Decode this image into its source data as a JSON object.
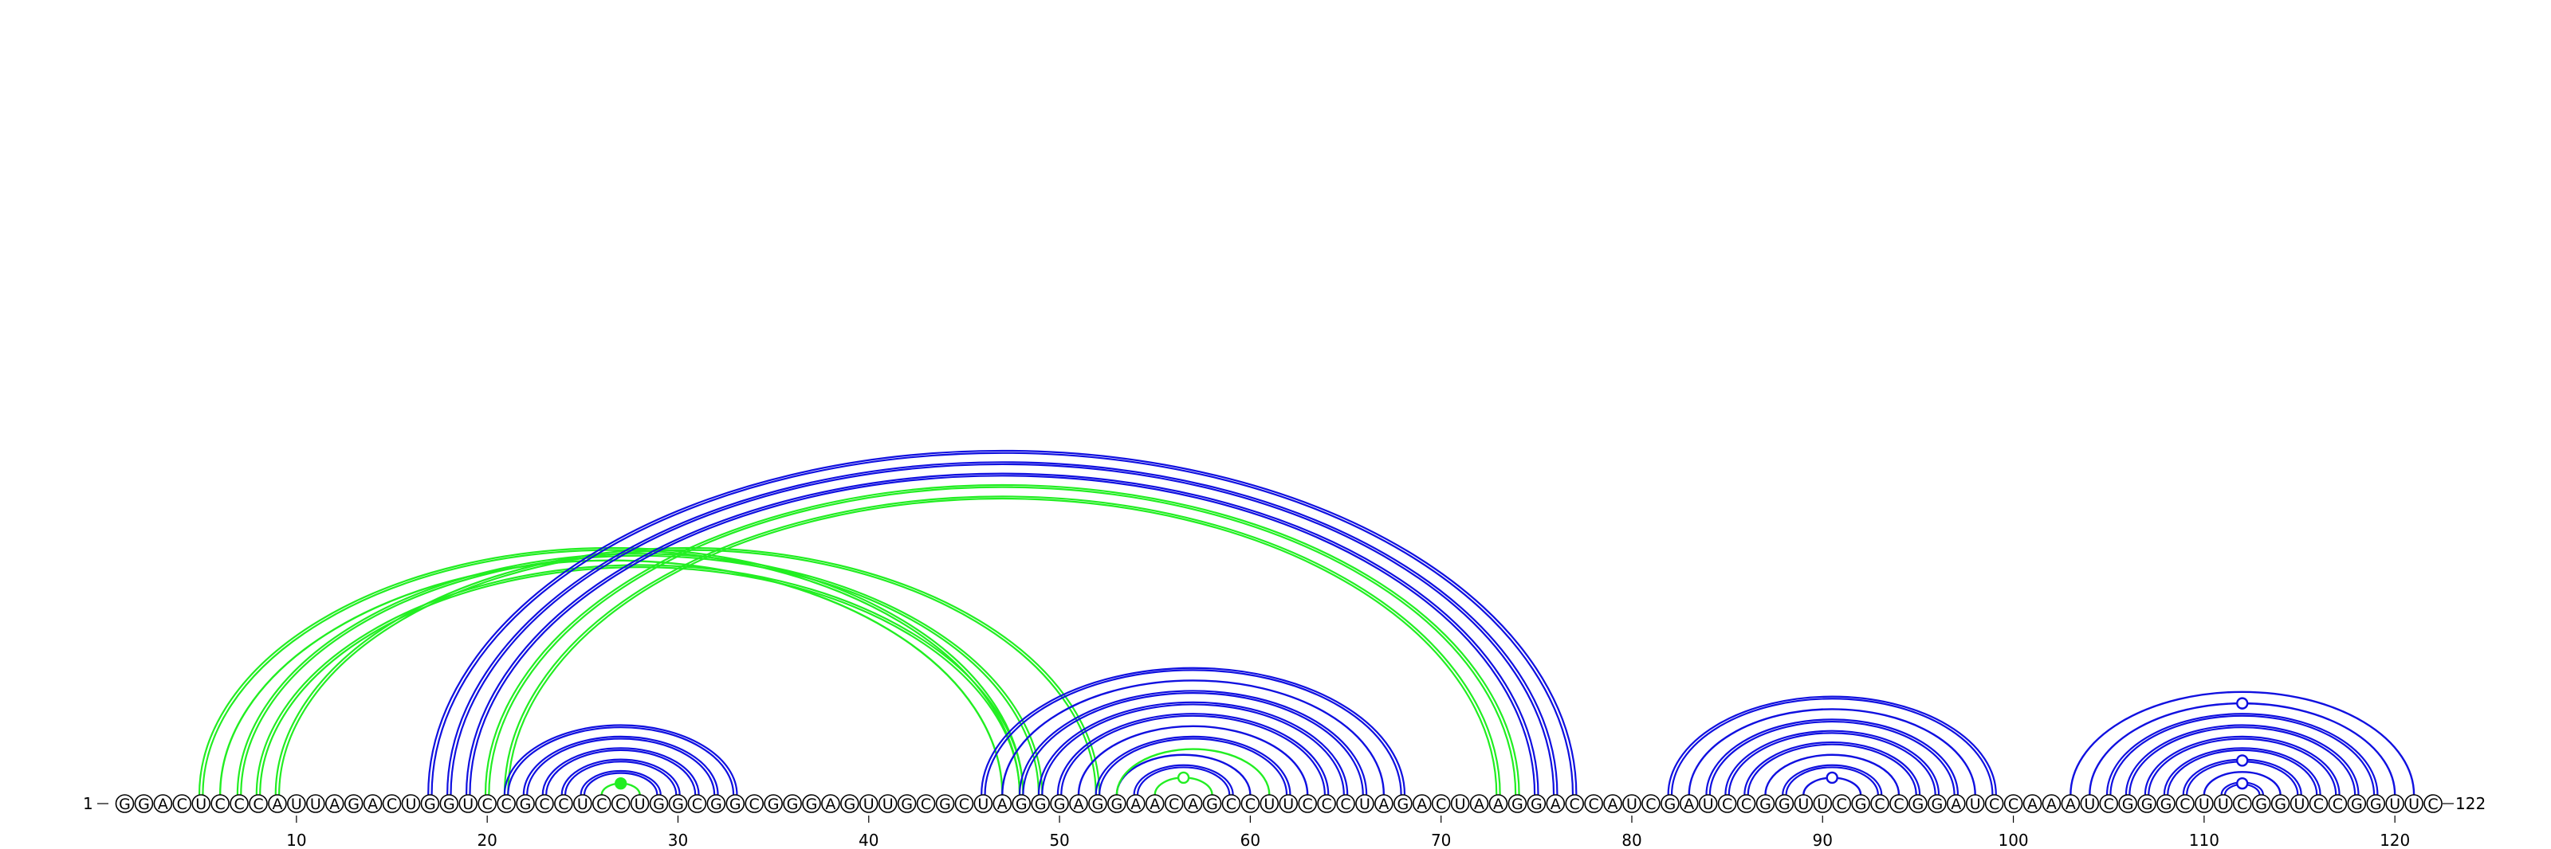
{
  "sequence": "GGACUCCCAUUAGACUGGUCCGCCUCCUGGCGGCGGGAGUUGCGCUAGGGAGGAACAGCCUUCCCUAGACUAAGGACCAUCGAUCCGGUUCGCCGGAUCCAAAUCGGGCUUCGGUCCGGUUC",
  "start_label": "1",
  "end_label": "122",
  "ticks": [
    {
      "pos": 10,
      "label": "10"
    },
    {
      "pos": 20,
      "label": "20"
    },
    {
      "pos": 30,
      "label": "30"
    },
    {
      "pos": 40,
      "label": "40"
    },
    {
      "pos": 50,
      "label": "50"
    },
    {
      "pos": 60,
      "label": "60"
    },
    {
      "pos": 70,
      "label": "70"
    },
    {
      "pos": 80,
      "label": "80"
    },
    {
      "pos": 90,
      "label": "90"
    },
    {
      "pos": 100,
      "label": "100"
    },
    {
      "pos": 110,
      "label": "110"
    },
    {
      "pos": 120,
      "label": "120"
    }
  ],
  "colors": {
    "blue": "#1010e0",
    "green": "#22ee22"
  },
  "arcs": [
    {
      "i": 5,
      "j": 48,
      "color": "green",
      "double": true
    },
    {
      "i": 6,
      "j": 47,
      "color": "green",
      "double": false
    },
    {
      "i": 7,
      "j": 49,
      "color": "green",
      "double": true
    },
    {
      "i": 8,
      "j": 48,
      "color": "green",
      "double": true
    },
    {
      "i": 9,
      "j": 52,
      "color": "green",
      "double": true
    },
    {
      "i": 17,
      "j": 77,
      "color": "blue",
      "double": true
    },
    {
      "i": 18,
      "j": 76,
      "color": "blue",
      "double": true
    },
    {
      "i": 19,
      "j": 75,
      "color": "blue",
      "double": true
    },
    {
      "i": 20,
      "j": 74,
      "color": "green",
      "double": true
    },
    {
      "i": 21,
      "j": 73,
      "color": "green",
      "double": true
    },
    {
      "i": 21,
      "j": 33,
      "color": "blue",
      "double": true
    },
    {
      "i": 22,
      "j": 32,
      "color": "blue",
      "double": true
    },
    {
      "i": 23,
      "j": 31,
      "color": "blue",
      "double": true
    },
    {
      "i": 24,
      "j": 30,
      "color": "blue",
      "double": true
    },
    {
      "i": 25,
      "j": 29,
      "color": "blue",
      "double": true
    },
    {
      "i": 26,
      "j": 28,
      "color": "green",
      "double": false,
      "dot": "filled"
    },
    {
      "i": 46,
      "j": 68,
      "color": "blue",
      "double": true
    },
    {
      "i": 47,
      "j": 67,
      "color": "blue",
      "double": false
    },
    {
      "i": 48,
      "j": 66,
      "color": "blue",
      "double": true
    },
    {
      "i": 49,
      "j": 65,
      "color": "blue",
      "double": true
    },
    {
      "i": 50,
      "j": 64,
      "color": "blue",
      "double": true
    },
    {
      "i": 51,
      "j": 63,
      "color": "blue",
      "double": false
    },
    {
      "i": 52,
      "j": 62,
      "color": "blue",
      "double": true
    },
    {
      "i": 53,
      "j": 60,
      "color": "blue",
      "double": false
    },
    {
      "i": 54,
      "j": 59,
      "color": "blue",
      "double": true
    },
    {
      "i": 53,
      "j": 61,
      "color": "green",
      "double": false
    },
    {
      "i": 55,
      "j": 58,
      "color": "green",
      "double": false,
      "dot": "open"
    },
    {
      "i": 82,
      "j": 99,
      "color": "blue",
      "double": true
    },
    {
      "i": 83,
      "j": 98,
      "color": "blue",
      "double": false
    },
    {
      "i": 84,
      "j": 97,
      "color": "blue",
      "double": true
    },
    {
      "i": 85,
      "j": 96,
      "color": "blue",
      "double": true
    },
    {
      "i": 86,
      "j": 95,
      "color": "blue",
      "double": true
    },
    {
      "i": 87,
      "j": 94,
      "color": "blue",
      "double": false
    },
    {
      "i": 88,
      "j": 93,
      "color": "blue",
      "double": true
    },
    {
      "i": 89,
      "j": 92,
      "color": "blue",
      "double": false,
      "dot": "open"
    },
    {
      "i": 103,
      "j": 121,
      "color": "blue",
      "double": false
    },
    {
      "i": 104,
      "j": 120,
      "color": "blue",
      "double": false,
      "dot": "open"
    },
    {
      "i": 105,
      "j": 119,
      "color": "blue",
      "double": true
    },
    {
      "i": 106,
      "j": 118,
      "color": "blue",
      "double": true
    },
    {
      "i": 107,
      "j": 117,
      "color": "blue",
      "double": true
    },
    {
      "i": 108,
      "j": 116,
      "color": "blue",
      "double": true
    },
    {
      "i": 109,
      "j": 115,
      "color": "blue",
      "double": true,
      "dot": "open"
    },
    {
      "i": 110,
      "j": 114,
      "color": "blue",
      "double": false
    },
    {
      "i": 111,
      "j": 113,
      "color": "blue",
      "double": true,
      "dot": "open"
    }
  ]
}
